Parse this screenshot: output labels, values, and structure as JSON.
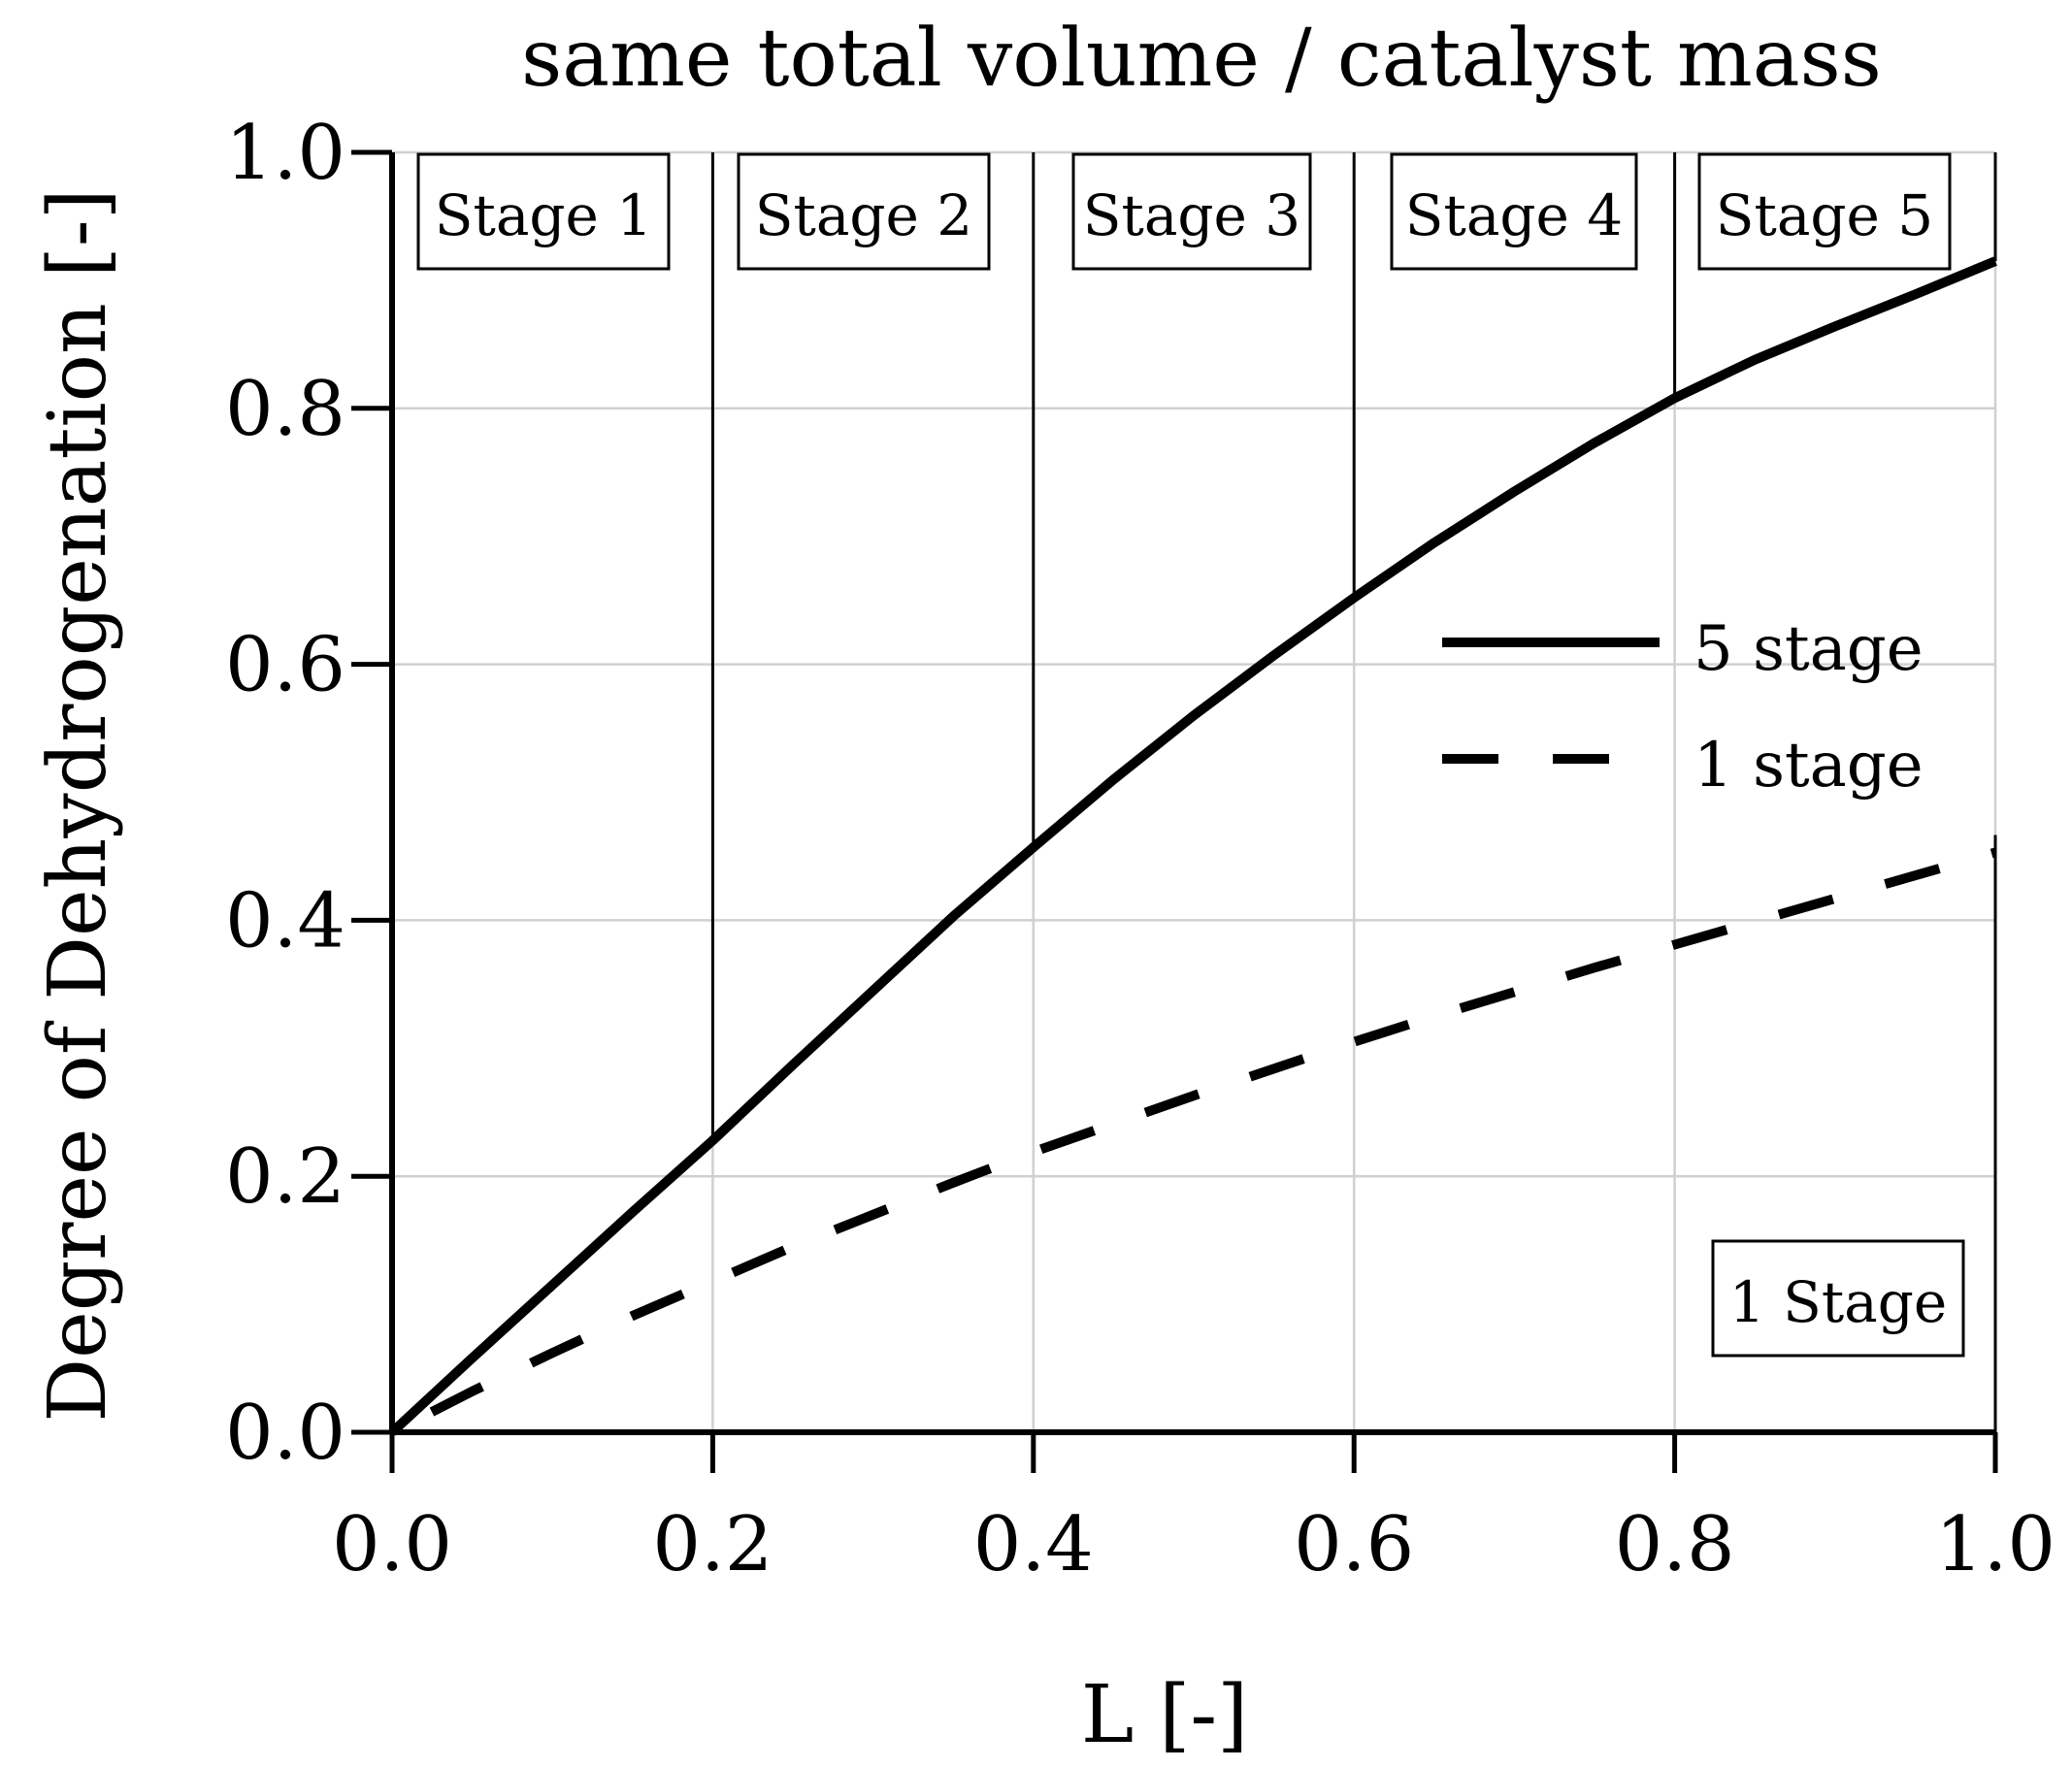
{
  "chart_data": {
    "type": "line",
    "title": "same total volume / catalyst mass",
    "xlabel": "L [-]",
    "ylabel": "Degree of Dehydrogenation [-]",
    "xlim": [
      0.0,
      1.0
    ],
    "ylim": [
      0.0,
      1.0
    ],
    "xticks": [
      "0.0",
      "0.2",
      "0.4",
      "0.6",
      "0.8",
      "1.0"
    ],
    "yticks": [
      "0.0",
      "0.2",
      "0.4",
      "0.6",
      "0.8",
      "1.0"
    ],
    "grid": true,
    "legend_position": "center-right",
    "series": [
      {
        "name": "5 stage",
        "style": "solid",
        "x": [
          0.0,
          0.05,
          0.1,
          0.15,
          0.2,
          0.25,
          0.3,
          0.35,
          0.4,
          0.45,
          0.5,
          0.55,
          0.6,
          0.65,
          0.7,
          0.75,
          0.8,
          0.85,
          0.9,
          0.95,
          1.0
        ],
        "y": [
          0.0,
          0.058,
          0.115,
          0.172,
          0.228,
          0.287,
          0.345,
          0.403,
          0.457,
          0.51,
          0.56,
          0.607,
          0.652,
          0.695,
          0.735,
          0.773,
          0.808,
          0.838,
          0.864,
          0.889,
          0.915
        ]
      },
      {
        "name": "1 stage",
        "style": "dashed",
        "x": [
          0.0,
          0.05,
          0.1,
          0.15,
          0.2,
          0.25,
          0.3,
          0.35,
          0.4,
          0.45,
          0.5,
          0.55,
          0.6,
          0.65,
          0.7,
          0.75,
          0.8,
          0.85,
          0.9,
          0.95,
          1.0
        ],
        "y": [
          0.0,
          0.032,
          0.062,
          0.091,
          0.118,
          0.145,
          0.17,
          0.195,
          0.219,
          0.241,
          0.263,
          0.284,
          0.305,
          0.325,
          0.344,
          0.363,
          0.381,
          0.399,
          0.417,
          0.435,
          0.453
        ]
      }
    ],
    "stage_dividers": [
      0.2,
      0.4,
      0.6,
      0.8,
      1.0
    ],
    "stage_labels": [
      "Stage 1",
      "Stage 2",
      "Stage 3",
      "Stage 4",
      "Stage 5"
    ],
    "single_stage_label": "1 Stage"
  }
}
